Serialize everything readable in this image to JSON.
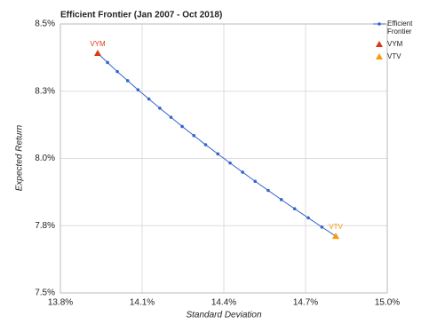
{
  "chart_data": {
    "type": "line",
    "title": "Efficient Frontier (Jan 2007 - Oct 2018)",
    "x_label": "Standard Deviation",
    "y_label": "Expected Return",
    "xlim": [
      13.8,
      15.0
    ],
    "xticks": [
      {
        "value": 13.8,
        "label": "13.8%"
      },
      {
        "value": 14.1,
        "label": "14.1%"
      },
      {
        "value": 14.4,
        "label": "14.4%"
      },
      {
        "value": 14.7,
        "label": "14.7%"
      },
      {
        "value": 15.0,
        "label": "15.0%"
      }
    ],
    "ylim": [
      7.5,
      8.5
    ],
    "yticks": [
      {
        "value": 7.5,
        "label": "7.5%"
      },
      {
        "value": 7.75,
        "label": "7.8%"
      },
      {
        "value": 8.0,
        "label": "8.0%"
      },
      {
        "value": 8.25,
        "label": "8.3%"
      },
      {
        "value": 8.5,
        "label": "8.5%"
      }
    ],
    "grid": true,
    "legend": "right",
    "series": [
      {
        "name": "Efficient Frontier",
        "color": "#3366cc",
        "marker": "circle",
        "line": true,
        "x": [
          13.937,
          13.973,
          14.009,
          14.047,
          14.085,
          14.125,
          14.165,
          14.206,
          14.247,
          14.29,
          14.333,
          14.378,
          14.423,
          14.469,
          14.515,
          14.563,
          14.611,
          14.66,
          14.71,
          14.76,
          14.811
        ],
        "values": [
          8.391,
          8.357,
          8.323,
          8.289,
          8.255,
          8.221,
          8.187,
          8.153,
          8.119,
          8.085,
          8.051,
          8.017,
          7.983,
          7.949,
          7.915,
          7.881,
          7.847,
          7.813,
          7.779,
          7.745,
          7.711
        ]
      },
      {
        "name": "VYM",
        "color": "#dc3912",
        "marker": "triangle",
        "line": false,
        "x": [
          13.937
        ],
        "values": [
          8.391
        ]
      },
      {
        "name": "VTV",
        "color": "#ff9900",
        "marker": "triangle",
        "line": false,
        "x": [
          14.811
        ],
        "values": [
          7.711
        ]
      }
    ]
  }
}
